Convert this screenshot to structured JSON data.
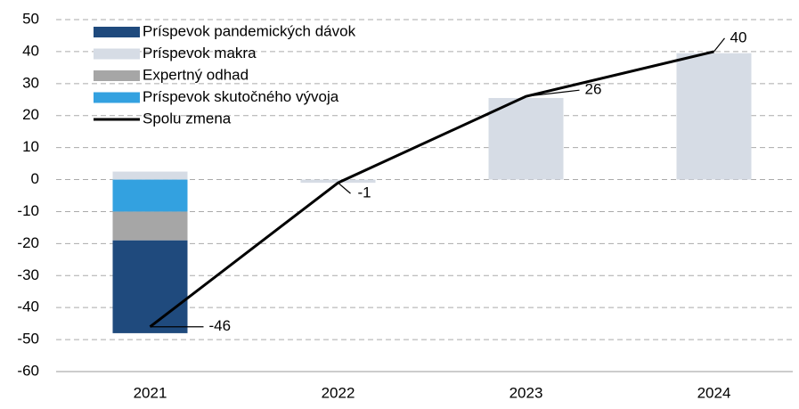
{
  "chart_data": {
    "type": "bar",
    "categories": [
      "2021",
      "2022",
      "2023",
      "2024"
    ],
    "series": [
      {
        "name": "Príspevok pandemických dávok",
        "color": "#1f4a7d",
        "values": [
          -29,
          0,
          0,
          0
        ]
      },
      {
        "name": "Príspevok makra",
        "color": "#d6dce5",
        "values": [
          2.5,
          -1,
          25.5,
          39.5
        ]
      },
      {
        "name": "Expertný odhad",
        "color": "#a6a6a6",
        "values": [
          -9,
          0,
          0,
          0
        ]
      },
      {
        "name": "Príspevok skutočného vývoja",
        "color": "#33a1e0",
        "values": [
          -10,
          0,
          0,
          0
        ]
      },
      {
        "name": "Spolu zmena",
        "color": "#000000",
        "type": "line",
        "values": [
          -46,
          -1,
          26,
          40
        ]
      }
    ],
    "ylim": [
      -60,
      50
    ],
    "yticks": [
      -60,
      -50,
      -40,
      -30,
      -20,
      -10,
      0,
      10,
      20,
      30,
      40,
      50
    ],
    "grid": true
  }
}
